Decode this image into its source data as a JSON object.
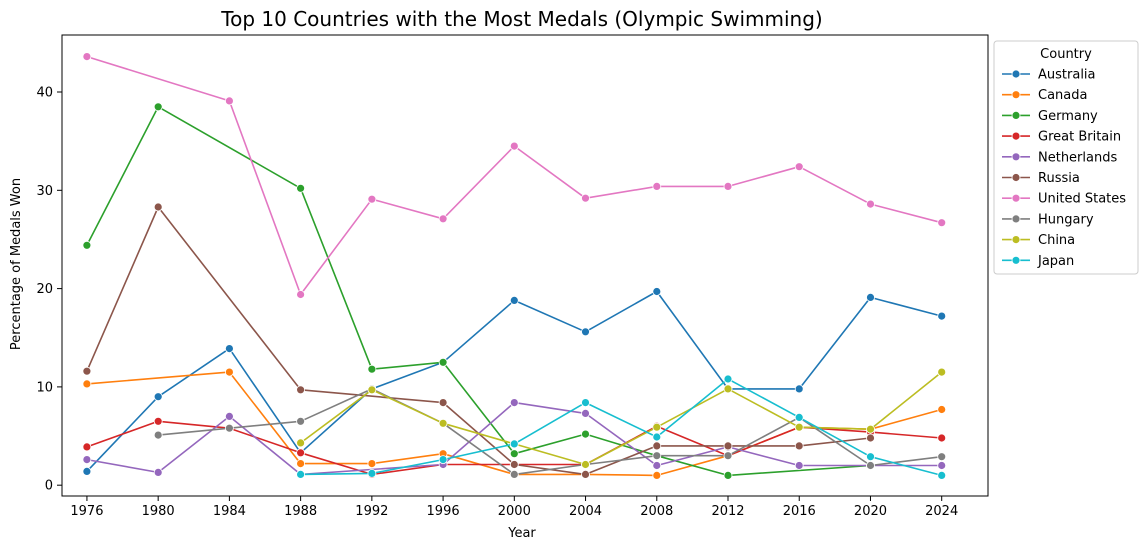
{
  "chart_data": {
    "type": "line",
    "title": "Top 10 Countries with the Most Medals (Olympic Swimming)",
    "xlabel": "Year",
    "ylabel": "Percentage of Medals Won",
    "x": [
      1976,
      1980,
      1984,
      1988,
      1992,
      1996,
      2000,
      2004,
      2008,
      2012,
      2016,
      2020,
      2024
    ],
    "x_ticks": [
      "1976",
      "1980",
      "1984",
      "1988",
      "1992",
      "1996",
      "2000",
      "2004",
      "2008",
      "2012",
      "2016",
      "2020",
      "2024"
    ],
    "y_ticks": [
      "0",
      "10",
      "20",
      "30",
      "40"
    ],
    "xlim": [
      1974.6,
      2026.6
    ],
    "ylim": [
      -1.1,
      45.8
    ],
    "grid": false,
    "legend": {
      "title": "Country",
      "placement": "outside-right"
    },
    "series": [
      {
        "name": "Australia",
        "color": "#1f77b4",
        "points": [
          [
            1976,
            1.4
          ],
          [
            1980,
            9.0
          ],
          [
            1984,
            13.9
          ],
          [
            1988,
            3.3
          ],
          [
            1992,
            9.8
          ],
          [
            1996,
            12.5
          ],
          [
            2000,
            18.8
          ],
          [
            2004,
            15.6
          ],
          [
            2008,
            19.7
          ],
          [
            2012,
            9.8
          ],
          [
            2016,
            9.8
          ],
          [
            2020,
            19.1
          ],
          [
            2024,
            17.2
          ]
        ]
      },
      {
        "name": "Canada",
        "color": "#ff7f0e",
        "points": [
          [
            1976,
            10.3
          ],
          [
            1984,
            11.5
          ],
          [
            1988,
            2.2
          ],
          [
            1992,
            2.2
          ],
          [
            1996,
            3.2
          ],
          [
            2000,
            1.1
          ],
          [
            2004,
            1.1
          ],
          [
            2008,
            1.0
          ],
          [
            2012,
            3.0
          ],
          [
            2016,
            5.9
          ],
          [
            2020,
            5.7
          ],
          [
            2024,
            7.7
          ]
        ]
      },
      {
        "name": "Germany",
        "color": "#2ca02c",
        "points": [
          [
            1976,
            24.4
          ],
          [
            1980,
            38.5
          ],
          [
            1988,
            30.2
          ],
          [
            1992,
            11.8
          ],
          [
            1996,
            12.5
          ],
          [
            2000,
            3.2
          ],
          [
            2004,
            5.2
          ],
          [
            2008,
            3.0
          ],
          [
            2012,
            1.0
          ],
          [
            2020,
            2.0
          ]
        ]
      },
      {
        "name": "Great Britain",
        "color": "#d62728",
        "points": [
          [
            1976,
            3.9
          ],
          [
            1980,
            6.5
          ],
          [
            1984,
            5.8
          ],
          [
            1988,
            3.3
          ],
          [
            1992,
            1.1
          ],
          [
            1996,
            2.1
          ],
          [
            2000,
            2.1
          ],
          [
            2004,
            2.1
          ],
          [
            2008,
            6.0
          ],
          [
            2012,
            3.0
          ],
          [
            2016,
            5.9
          ],
          [
            2020,
            5.4
          ],
          [
            2024,
            4.8
          ]
        ]
      },
      {
        "name": "Netherlands",
        "color": "#9467bd",
        "points": [
          [
            1976,
            2.6
          ],
          [
            1980,
            1.3
          ],
          [
            1984,
            7.0
          ],
          [
            1988,
            1.1
          ],
          [
            1996,
            2.1
          ],
          [
            2000,
            8.4
          ],
          [
            2004,
            7.3
          ],
          [
            2008,
            2.0
          ],
          [
            2012,
            3.9
          ],
          [
            2016,
            2.0
          ],
          [
            2020,
            2.0
          ],
          [
            2024,
            2.0
          ]
        ]
      },
      {
        "name": "Russia",
        "color": "#8c564b",
        "points": [
          [
            1976,
            11.6
          ],
          [
            1980,
            28.3
          ],
          [
            1988,
            9.7
          ],
          [
            1996,
            8.4
          ],
          [
            2000,
            2.1
          ],
          [
            2004,
            1.1
          ],
          [
            2008,
            4.0
          ],
          [
            2012,
            4.0
          ],
          [
            2016,
            4.0
          ],
          [
            2020,
            4.8
          ]
        ]
      },
      {
        "name": "United States",
        "color": "#e377c2",
        "points": [
          [
            1976,
            43.6
          ],
          [
            1984,
            39.1
          ],
          [
            1988,
            19.4
          ],
          [
            1992,
            29.1
          ],
          [
            1996,
            27.1
          ],
          [
            2000,
            34.5
          ],
          [
            2004,
            29.2
          ],
          [
            2008,
            30.4
          ],
          [
            2012,
            30.4
          ],
          [
            2016,
            32.4
          ],
          [
            2020,
            28.6
          ],
          [
            2024,
            26.7
          ]
        ]
      },
      {
        "name": "Hungary",
        "color": "#7f7f7f",
        "points": [
          [
            1980,
            5.1
          ],
          [
            1984,
            5.8
          ],
          [
            1988,
            6.5
          ],
          [
            1992,
            9.8
          ],
          [
            1996,
            6.3
          ],
          [
            2000,
            1.1
          ],
          [
            2004,
            2.1
          ],
          [
            2008,
            3.0
          ],
          [
            2012,
            3.0
          ],
          [
            2016,
            6.9
          ],
          [
            2020,
            2.0
          ],
          [
            2024,
            2.9
          ]
        ]
      },
      {
        "name": "China",
        "color": "#bcbd22",
        "points": [
          [
            1988,
            4.3
          ],
          [
            1992,
            9.7
          ],
          [
            1996,
            6.3
          ],
          [
            2000,
            4.2
          ],
          [
            2004,
            2.1
          ],
          [
            2008,
            5.9
          ],
          [
            2012,
            9.8
          ],
          [
            2016,
            5.9
          ],
          [
            2020,
            5.7
          ],
          [
            2024,
            11.5
          ]
        ]
      },
      {
        "name": "Japan",
        "color": "#17becf",
        "points": [
          [
            1988,
            1.1
          ],
          [
            1992,
            1.2
          ],
          [
            1996,
            2.6
          ],
          [
            2000,
            4.2
          ],
          [
            2004,
            8.4
          ],
          [
            2008,
            4.9
          ],
          [
            2012,
            10.8
          ],
          [
            2016,
            6.9
          ],
          [
            2020,
            2.9
          ],
          [
            2024,
            1.0
          ]
        ]
      }
    ]
  }
}
